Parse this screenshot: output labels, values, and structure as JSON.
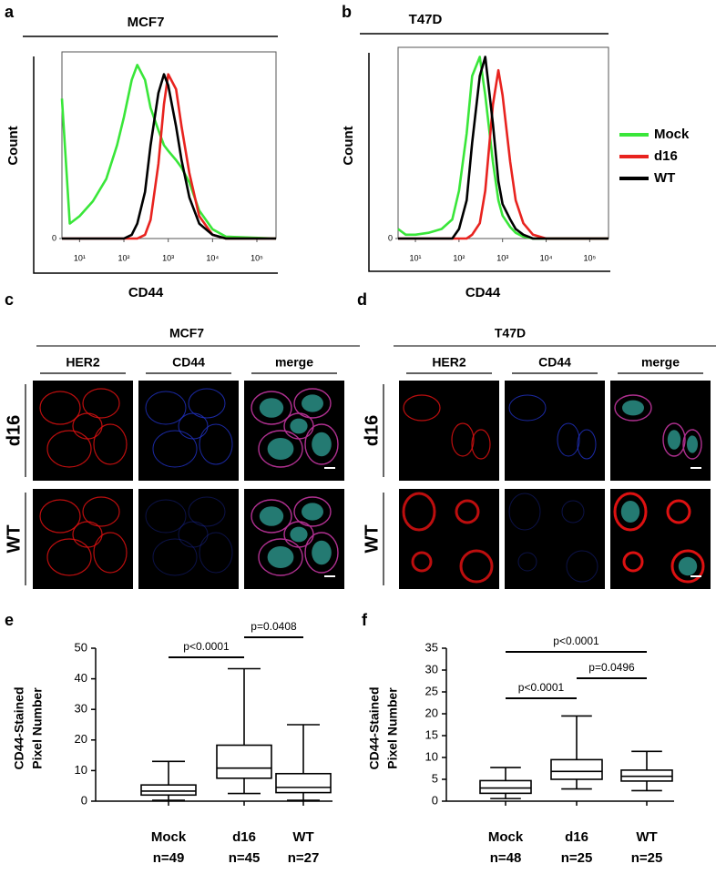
{
  "chart_data": [
    {
      "panel": "a",
      "type": "line",
      "title": "MCF7",
      "xlabel": "CD44",
      "ylabel": "Count",
      "log_x": true,
      "x": [
        4,
        6,
        10,
        20,
        40,
        70,
        100,
        150,
        200,
        300,
        400,
        600,
        800,
        1000,
        1500,
        2000,
        3000,
        5000,
        10000,
        20000,
        270000
      ],
      "xlim": [
        4,
        270000
      ],
      "xticks": [
        {
          "value": 10,
          "label": "10¹"
        },
        {
          "value": 100,
          "label": "10²"
        },
        {
          "value": 1000,
          "label": "10³"
        },
        {
          "value": 10000,
          "label": "10⁴"
        },
        {
          "value": 100000,
          "label": "10⁵"
        }
      ],
      "ylim": [
        0,
        100
      ],
      "yticks": [
        0
      ],
      "series": [
        {
          "color": "#39e639",
          "values": [
            75,
            8,
            12,
            20,
            32,
            50,
            65,
            85,
            93,
            85,
            70,
            58,
            50,
            47,
            42,
            38,
            30,
            15,
            5,
            1,
            0
          ]
        },
        {
          "color": "#e8231f",
          "values": [
            0,
            0,
            0,
            0,
            0,
            0,
            0,
            0,
            0,
            2,
            10,
            40,
            72,
            88,
            80,
            60,
            35,
            12,
            2,
            0,
            0
          ]
        },
        {
          "color": "#000000",
          "values": [
            0,
            0,
            0,
            0,
            0,
            0,
            0,
            2,
            8,
            25,
            50,
            78,
            88,
            82,
            60,
            42,
            22,
            8,
            2,
            0,
            0
          ]
        }
      ]
    },
    {
      "panel": "b",
      "type": "line",
      "title": "T47D",
      "xlabel": "CD44",
      "ylabel": "Count",
      "log_x": true,
      "x": [
        4,
        6,
        10,
        20,
        40,
        70,
        100,
        150,
        200,
        300,
        400,
        600,
        800,
        1000,
        1500,
        2000,
        3000,
        5000,
        10000,
        20000,
        270000
      ],
      "xlim": [
        4,
        270000
      ],
      "xticks": [
        {
          "value": 10,
          "label": "10¹"
        },
        {
          "value": 100,
          "label": "10²"
        },
        {
          "value": 1000,
          "label": "10³"
        },
        {
          "value": 10000,
          "label": "10⁴"
        },
        {
          "value": 100000,
          "label": "10⁵"
        }
      ],
      "ylim": [
        0,
        100
      ],
      "yticks": [
        0
      ],
      "series": [
        {
          "name": "Mock",
          "color": "#39e639",
          "values": [
            5,
            2,
            2,
            3,
            5,
            10,
            25,
            55,
            85,
            95,
            75,
            40,
            20,
            12,
            6,
            3,
            1,
            0,
            0,
            0,
            0
          ]
        },
        {
          "name": "d16",
          "color": "#e8231f",
          "values": [
            0,
            0,
            0,
            0,
            0,
            0,
            0,
            0,
            2,
            8,
            25,
            70,
            88,
            75,
            40,
            20,
            8,
            2,
            0,
            0,
            0
          ]
        },
        {
          "name": "WT",
          "color": "#000000",
          "values": [
            0,
            0,
            0,
            0,
            0,
            0,
            5,
            20,
            50,
            85,
            95,
            60,
            30,
            18,
            10,
            5,
            2,
            0,
            0,
            0,
            0
          ]
        }
      ]
    },
    {
      "panel": "e",
      "type": "box",
      "ylabel": [
        "CD44-Stained",
        "Pixel Number"
      ],
      "categories": [
        "Mock",
        "d16",
        "WT"
      ],
      "n_labels": [
        "n=49",
        "n=45",
        "n=27"
      ],
      "ylim": [
        0,
        50
      ],
      "yticks": [
        0,
        10,
        20,
        30,
        40,
        50
      ],
      "stats": [
        {
          "min": 0.3,
          "q1": 2,
          "median": 3.3,
          "q3": 5.3,
          "max": 13
        },
        {
          "min": 2.5,
          "q1": 7.5,
          "median": 10.8,
          "q3": 18.3,
          "max": 43.3
        },
        {
          "min": 0.3,
          "q1": 2.8,
          "median": 4.5,
          "q3": 9,
          "max": 25
        }
      ],
      "comparisons": [
        {
          "groups": [
            0,
            1
          ],
          "label": "p<0.0001"
        },
        {
          "groups": [
            1,
            2
          ],
          "label": "p=0.0408"
        }
      ]
    },
    {
      "panel": "f",
      "type": "box",
      "ylabel": [
        "CD44-Stained",
        "Pixel Number"
      ],
      "categories": [
        "Mock",
        "d16",
        "WT"
      ],
      "n_labels": [
        "n=48",
        "n=25",
        "n=25"
      ],
      "ylim": [
        0,
        35
      ],
      "yticks": [
        0,
        5,
        10,
        15,
        20,
        25,
        30,
        35
      ],
      "stats": [
        {
          "min": 0.6,
          "q1": 1.8,
          "median": 3,
          "q3": 4.7,
          "max": 7.7
        },
        {
          "min": 2.8,
          "q1": 5,
          "median": 6.8,
          "q3": 9.5,
          "max": 19.5
        },
        {
          "min": 2.4,
          "q1": 4.6,
          "median": 5.7,
          "q3": 7.1,
          "max": 11.4
        }
      ],
      "comparisons": [
        {
          "groups": [
            0,
            2
          ],
          "label": "p<0.0001"
        },
        {
          "groups": [
            0,
            1
          ],
          "label": "p<0.0001"
        },
        {
          "groups": [
            1,
            2
          ],
          "label": "p=0.0496"
        }
      ]
    }
  ],
  "images": [
    {
      "panel": "c",
      "title": "MCF7",
      "columns": [
        "HER2",
        "CD44",
        "merge"
      ],
      "rows": [
        "d16",
        "WT"
      ]
    },
    {
      "panel": "d",
      "title": "T47D",
      "columns": [
        "HER2",
        "CD44",
        "merge"
      ],
      "rows": [
        "d16",
        "WT"
      ]
    }
  ]
}
